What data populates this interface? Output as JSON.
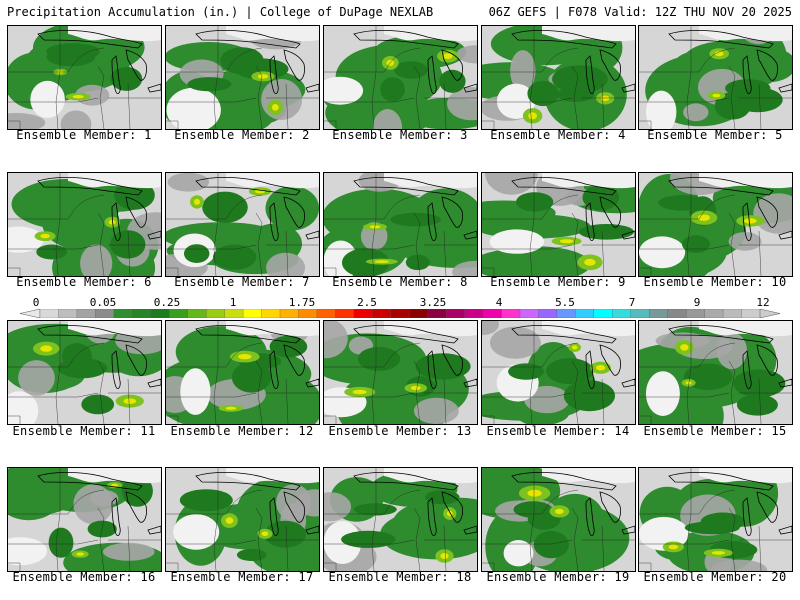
{
  "header": {
    "title": "Precipitation Accumulation (in.) | College of DuPage NEXLAB",
    "run": "06Z GEFS | F078 Valid: 12Z THU NOV 20 2025"
  },
  "members": [
    {
      "label": "Ensemble Member: 1"
    },
    {
      "label": "Ensemble Member: 2"
    },
    {
      "label": "Ensemble Member: 3"
    },
    {
      "label": "Ensemble Member: 4"
    },
    {
      "label": "Ensemble Member: 5"
    },
    {
      "label": "Ensemble Member: 6"
    },
    {
      "label": "Ensemble Member: 7"
    },
    {
      "label": "Ensemble Member: 8"
    },
    {
      "label": "Ensemble Member: 9"
    },
    {
      "label": "Ensemble Member: 10"
    },
    {
      "label": "Ensemble Member: 11"
    },
    {
      "label": "Ensemble Member: 12"
    },
    {
      "label": "Ensemble Member: 13"
    },
    {
      "label": "Ensemble Member: 14"
    },
    {
      "label": "Ensemble Member: 15"
    },
    {
      "label": "Ensemble Member: 16"
    },
    {
      "label": "Ensemble Member: 17"
    },
    {
      "label": "Ensemble Member: 18"
    },
    {
      "label": "Ensemble Member: 19"
    },
    {
      "label": "Ensemble Member: 20"
    }
  ],
  "colorbar": {
    "ticks": [
      "0",
      "0.05",
      "0.25",
      "1",
      "1.75",
      "2.5",
      "3.25",
      "4",
      "5.5",
      "7",
      "9",
      "12"
    ],
    "colors": [
      "#d9d9d9",
      "#bdbdbd",
      "#a3a3a3",
      "#8c8c8c",
      "#2f8f2f",
      "#268626",
      "#1e7a1e",
      "#3a9e1e",
      "#66b81a",
      "#99cc14",
      "#ccdd0f",
      "#ffff00",
      "#ffd700",
      "#ffb000",
      "#ff8c00",
      "#ff6000",
      "#ff3300",
      "#ee0000",
      "#cc0000",
      "#aa0000",
      "#8b0000",
      "#8b0040",
      "#aa0066",
      "#cc0088",
      "#ee00aa",
      "#ff33cc",
      "#cc66ff",
      "#9966ff",
      "#6699ff",
      "#33ccff",
      "#00ffff",
      "#33dddd",
      "#55bbbb",
      "#779999",
      "#888888",
      "#999999",
      "#aaaaaa",
      "#bbbbbb",
      "#cccccc"
    ]
  }
}
